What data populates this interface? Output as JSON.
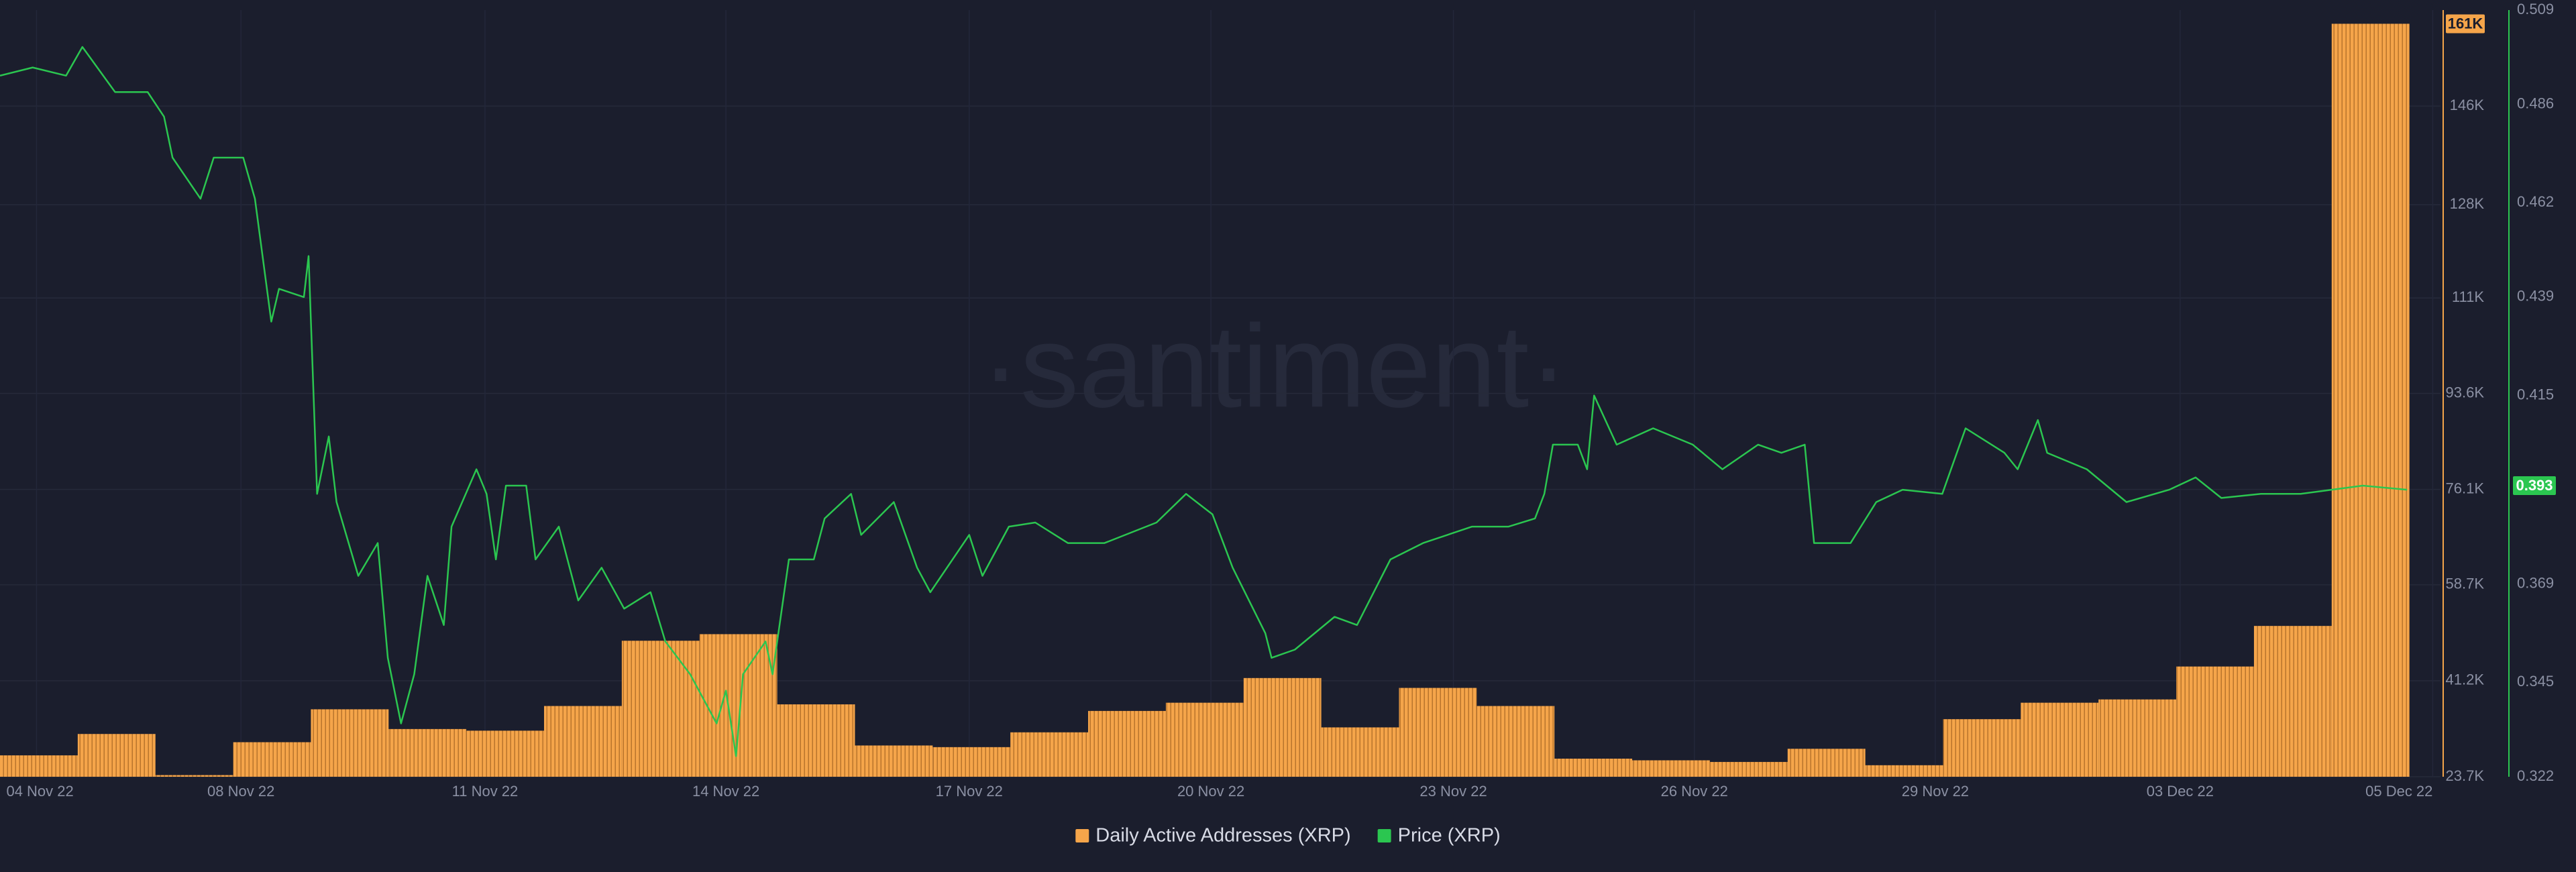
{
  "chart_data": {
    "type": "combo",
    "watermark": "·santiment·",
    "xlim": [
      0,
      31.4
    ],
    "xticks": [
      {
        "value": 0.47,
        "label": "04 Nov 22"
      },
      {
        "value": 3.1,
        "label": "08 Nov 22"
      },
      {
        "value": 6.24,
        "label": "11 Nov 22"
      },
      {
        "value": 9.34,
        "label": "14 Nov 22"
      },
      {
        "value": 12.47,
        "label": "17 Nov 22"
      },
      {
        "value": 15.58,
        "label": "20 Nov 22"
      },
      {
        "value": 18.7,
        "label": "23 Nov 22"
      },
      {
        "value": 21.8,
        "label": "26 Nov 22"
      },
      {
        "value": 24.9,
        "label": "29 Nov 22"
      },
      {
        "value": 28.05,
        "label": "03 Dec 22"
      },
      {
        "value": 31.3,
        "label": "05 Dec 22"
      }
    ],
    "ylim": [
      23700,
      163500
    ],
    "yticks": [
      {
        "value": 23700,
        "label": "23.7K"
      },
      {
        "value": 41200,
        "label": "41.2K"
      },
      {
        "value": 58700,
        "label": "58.7K"
      },
      {
        "value": 76100,
        "label": "76.1K"
      },
      {
        "value": 93600,
        "label": "93.6K"
      },
      {
        "value": 111000,
        "label": "111K"
      },
      {
        "value": 128000,
        "label": "128K"
      },
      {
        "value": 146000,
        "label": "146K"
      }
    ],
    "y2lim": [
      0.322,
      0.509
    ],
    "y2ticks": [
      0.322,
      0.345,
      0.369,
      0.415,
      0.439,
      0.462,
      0.486,
      0.509
    ],
    "grid": true,
    "series": [
      {
        "name": "Daily Active Addresses (XRP)",
        "type": "bar",
        "color": "#f5a54a",
        "x": [
          0,
          1,
          2,
          3,
          4,
          5,
          6,
          7,
          8,
          9,
          10,
          11,
          12,
          13,
          14,
          15,
          16,
          17,
          18,
          19,
          20,
          21,
          22,
          23,
          24,
          25,
          26,
          27,
          28,
          29,
          30
        ],
        "values": [
          27600,
          31500,
          24000,
          30000,
          36000,
          32400,
          32100,
          36600,
          48500,
          49700,
          36900,
          29400,
          29100,
          31800,
          35700,
          37200,
          41700,
          32700,
          39900,
          36600,
          27000,
          26700,
          26400,
          28800,
          25800,
          34200,
          37200,
          37800,
          43800,
          51200,
          161000
        ],
        "current": {
          "value": 161000,
          "label": "161K"
        }
      },
      {
        "name": "Price (XRP)",
        "type": "line",
        "axis": "y2",
        "color": "#2bc650",
        "x": [
          0.0,
          0.42,
          0.85,
          1.06,
          1.48,
          1.9,
          2.11,
          2.22,
          2.58,
          2.75,
          3.13,
          3.28,
          3.49,
          3.59,
          3.91,
          3.97,
          4.08,
          4.23,
          4.33,
          4.61,
          4.86,
          4.99,
          5.16,
          5.33,
          5.5,
          5.71,
          5.81,
          6.13,
          6.26,
          6.38,
          6.51,
          6.77,
          6.89,
          7.19,
          7.44,
          7.74,
          8.03,
          8.37,
          8.56,
          8.88,
          9.22,
          9.34,
          9.47,
          9.56,
          9.85,
          9.94,
          10.15,
          10.47,
          10.61,
          10.95,
          11.08,
          11.5,
          11.8,
          11.97,
          12.47,
          12.64,
          12.98,
          13.32,
          13.74,
          14.21,
          14.88,
          15.26,
          15.6,
          15.86,
          16.28,
          16.36,
          16.66,
          17.17,
          17.46,
          17.89,
          18.31,
          18.94,
          19.41,
          19.75,
          19.87,
          19.98,
          20.3,
          20.42,
          20.51,
          20.8,
          21.27,
          21.78,
          22.16,
          22.62,
          22.92,
          23.22,
          23.34,
          23.81,
          24.14,
          24.48,
          24.99,
          25.29,
          25.79,
          25.96,
          26.22,
          26.34,
          26.85,
          27.36,
          27.91,
          28.25,
          28.58,
          29.09,
          29.6,
          30.4,
          30.97
        ],
        "values": [
          0.493,
          0.495,
          0.493,
          0.5,
          0.489,
          0.489,
          0.483,
          0.473,
          0.463,
          0.473,
          0.473,
          0.463,
          0.433,
          0.441,
          0.439,
          0.449,
          0.391,
          0.405,
          0.389,
          0.371,
          0.379,
          0.351,
          0.335,
          0.347,
          0.371,
          0.359,
          0.383,
          0.397,
          0.391,
          0.375,
          0.393,
          0.393,
          0.375,
          0.383,
          0.365,
          0.373,
          0.363,
          0.367,
          0.355,
          0.347,
          0.335,
          0.343,
          0.327,
          0.347,
          0.355,
          0.347,
          0.375,
          0.375,
          0.385,
          0.391,
          0.381,
          0.389,
          0.373,
          0.367,
          0.381,
          0.371,
          0.383,
          0.384,
          0.379,
          0.379,
          0.384,
          0.391,
          0.386,
          0.373,
          0.357,
          0.351,
          0.353,
          0.361,
          0.359,
          0.375,
          0.379,
          0.383,
          0.383,
          0.385,
          0.391,
          0.403,
          0.403,
          0.397,
          0.415,
          0.403,
          0.407,
          0.403,
          0.397,
          0.403,
          0.401,
          0.403,
          0.379,
          0.379,
          0.389,
          0.392,
          0.391,
          0.407,
          0.401,
          0.397,
          0.409,
          0.401,
          0.397,
          0.389,
          0.392,
          0.395,
          0.39,
          0.391,
          0.391,
          0.393,
          0.392
        ],
        "current": 0.393
      }
    ]
  }
}
